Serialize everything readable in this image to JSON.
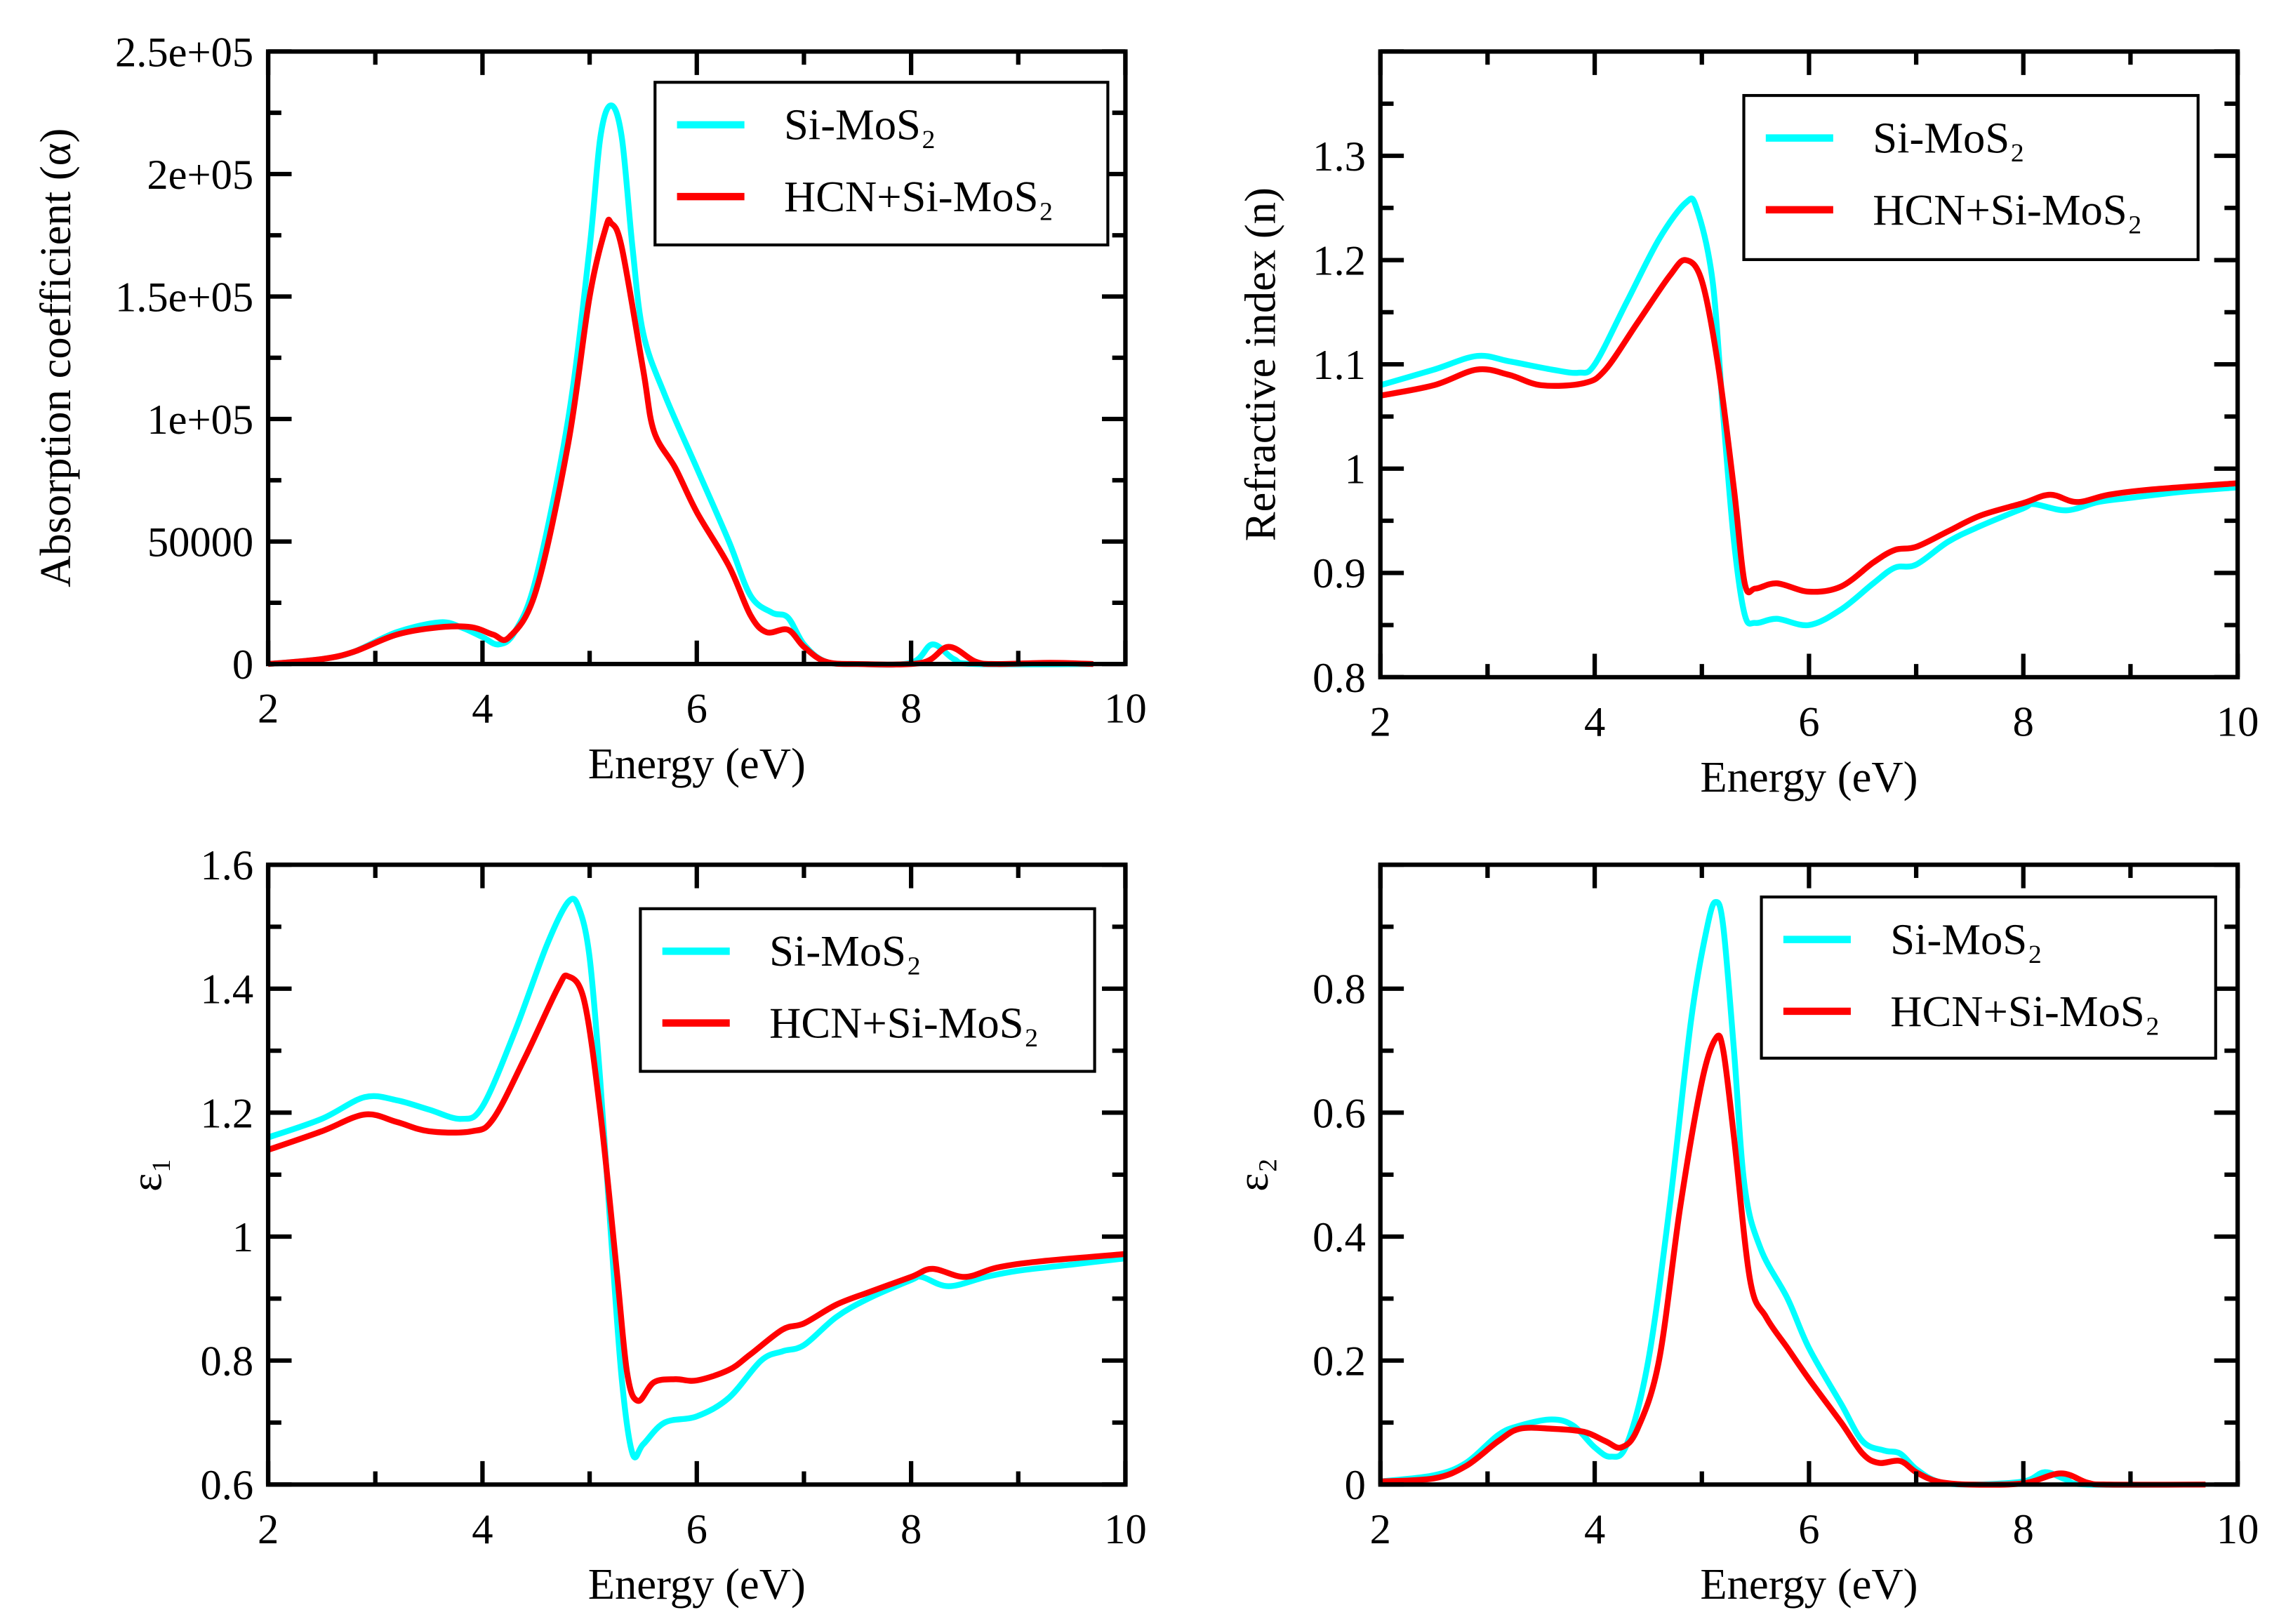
{
  "colors": {
    "series1": "#00ffff",
    "series2": "#ff0000",
    "axis": "#000000"
  },
  "chart_data": [
    {
      "type": "line",
      "xlabel": "Energy (eV)",
      "ylabel": "Absorption coefficient (α)",
      "xlim": [
        2,
        10
      ],
      "ylim": [
        0,
        250000
      ],
      "xticks": [
        2,
        4,
        6,
        8,
        10
      ],
      "xtick_labels": [
        "2",
        "4",
        "6",
        "8",
        "10"
      ],
      "yticks": [
        0,
        50000,
        100000,
        150000,
        200000,
        250000
      ],
      "ytick_labels": [
        "0",
        "50000",
        "1e+05",
        "1.5e+05",
        "2e+05",
        "2.5e+05"
      ],
      "legend": "top-right",
      "series": [
        {
          "name": "Si-MoS₂",
          "color": "#00ffff",
          "x": [
            2,
            2.5,
            2.8,
            3.2,
            3.6,
            3.8,
            4.0,
            4.15,
            4.3,
            4.5,
            4.8,
            5.0,
            5.1,
            5.2,
            5.3,
            5.4,
            5.5,
            5.7,
            6.0,
            6.3,
            6.5,
            6.7,
            6.85,
            7.0,
            7.2,
            7.5,
            8.0,
            8.2,
            8.4,
            8.6,
            9.7
          ],
          "y": [
            0,
            2000,
            5000,
            13000,
            17000,
            15000,
            11000,
            8000,
            13000,
            35000,
            100000,
            170000,
            215000,
            228000,
            215000,
            170000,
            135000,
            110000,
            80000,
            50000,
            28000,
            21000,
            19000,
            8000,
            1000,
            0,
            500,
            8000,
            2000,
            0,
            0
          ]
        },
        {
          "name": "HCN+Si-MoS₂",
          "color": "#ff0000",
          "x": [
            2,
            2.5,
            2.8,
            3.2,
            3.6,
            3.9,
            4.1,
            4.25,
            4.5,
            4.8,
            5.0,
            5.15,
            5.2,
            5.3,
            5.5,
            5.6,
            5.8,
            6.0,
            6.3,
            6.5,
            6.65,
            6.85,
            7.0,
            7.2,
            7.5,
            8.1,
            8.35,
            8.6,
            8.8,
            9.3,
            9.7
          ],
          "y": [
            0,
            2000,
            5000,
            12000,
            15000,
            15000,
            12000,
            11000,
            30000,
            90000,
            150000,
            178000,
            180000,
            170000,
            120000,
            95000,
            80000,
            62000,
            40000,
            20000,
            13000,
            14000,
            7000,
            1000,
            0,
            500,
            7000,
            1000,
            0,
            500,
            0
          ]
        }
      ]
    },
    {
      "type": "line",
      "xlabel": "Energy (eV)",
      "ylabel": "Refractive index (n)",
      "xlim": [
        2,
        10
      ],
      "ylim": [
        0.8,
        1.4
      ],
      "xticks": [
        2,
        4,
        6,
        8,
        10
      ],
      "xtick_labels": [
        "2",
        "4",
        "6",
        "8",
        "10"
      ],
      "yticks": [
        0.8,
        0.9,
        1.0,
        1.1,
        1.2,
        1.3
      ],
      "ytick_labels": [
        "0.8",
        "0.9",
        "1",
        "1.1",
        "1.2",
        "1.3"
      ],
      "legend": "top-right",
      "series": [
        {
          "name": "Si-MoS₂",
          "color": "#00ffff",
          "x": [
            2,
            2.5,
            2.9,
            3.2,
            3.6,
            3.85,
            4.0,
            4.3,
            4.6,
            4.85,
            4.95,
            5.1,
            5.2,
            5.3,
            5.4,
            5.5,
            5.7,
            6.0,
            6.3,
            6.6,
            6.8,
            7.0,
            7.3,
            7.6,
            8.0,
            8.1,
            8.4,
            8.7,
            9.0,
            9.5,
            10
          ],
          "y": [
            1.08,
            1.095,
            1.108,
            1.103,
            1.095,
            1.092,
            1.1,
            1.16,
            1.22,
            1.255,
            1.25,
            1.18,
            1.05,
            0.93,
            0.86,
            0.852,
            0.856,
            0.85,
            0.865,
            0.89,
            0.905,
            0.908,
            0.93,
            0.945,
            0.962,
            0.966,
            0.96,
            0.968,
            0.972,
            0.978,
            0.982
          ]
        },
        {
          "name": "HCN+Si-MoS₂",
          "color": "#ff0000",
          "x": [
            2,
            2.5,
            2.9,
            3.2,
            3.5,
            3.9,
            4.1,
            4.4,
            4.7,
            4.85,
            5.0,
            5.15,
            5.3,
            5.4,
            5.5,
            5.7,
            6.0,
            6.3,
            6.6,
            6.8,
            7.0,
            7.3,
            7.6,
            8.0,
            8.25,
            8.5,
            8.8,
            9.2,
            10
          ],
          "y": [
            1.07,
            1.08,
            1.095,
            1.09,
            1.08,
            1.082,
            1.095,
            1.14,
            1.185,
            1.2,
            1.18,
            1.1,
            0.98,
            0.89,
            0.885,
            0.89,
            0.882,
            0.887,
            0.91,
            0.922,
            0.925,
            0.94,
            0.955,
            0.967,
            0.975,
            0.968,
            0.975,
            0.98,
            0.986
          ]
        }
      ]
    },
    {
      "type": "line",
      "xlabel": "Energy (eV)",
      "ylabel": "ε₁",
      "xlim": [
        2,
        10
      ],
      "ylim": [
        0.6,
        1.6
      ],
      "xticks": [
        2,
        4,
        6,
        8,
        10
      ],
      "xtick_labels": [
        "2",
        "4",
        "6",
        "8",
        "10"
      ],
      "yticks": [
        0.6,
        0.8,
        1.0,
        1.2,
        1.4,
        1.6
      ],
      "ytick_labels": [
        "0.6",
        "0.8",
        "1",
        "1.2",
        "1.4",
        "1.6"
      ],
      "legend": "top-right",
      "series": [
        {
          "name": "Si-MoS₂",
          "color": "#00ffff",
          "x": [
            2,
            2.5,
            2.9,
            3.2,
            3.5,
            3.8,
            4.0,
            4.3,
            4.6,
            4.8,
            4.9,
            5.0,
            5.1,
            5.2,
            5.3,
            5.4,
            5.5,
            5.7,
            6.0,
            6.3,
            6.6,
            6.8,
            7.0,
            7.3,
            7.6,
            8.0,
            8.1,
            8.35,
            8.7,
            9.0,
            9.5,
            10
          ],
          "y": [
            1.16,
            1.19,
            1.225,
            1.22,
            1.205,
            1.19,
            1.21,
            1.33,
            1.47,
            1.54,
            1.53,
            1.45,
            1.25,
            1.0,
            0.77,
            0.65,
            0.665,
            0.7,
            0.71,
            0.74,
            0.8,
            0.815,
            0.825,
            0.87,
            0.9,
            0.93,
            0.935,
            0.92,
            0.935,
            0.945,
            0.955,
            0.965
          ]
        },
        {
          "name": "HCN+Si-MoS₂",
          "color": "#ff0000",
          "x": [
            2,
            2.5,
            2.9,
            3.2,
            3.5,
            3.9,
            4.1,
            4.4,
            4.7,
            4.8,
            4.95,
            5.1,
            5.25,
            5.35,
            5.45,
            5.6,
            5.8,
            6.0,
            6.3,
            6.5,
            6.8,
            7.0,
            7.3,
            7.6,
            8.0,
            8.2,
            8.5,
            8.8,
            9.2,
            10
          ],
          "y": [
            1.14,
            1.17,
            1.197,
            1.185,
            1.17,
            1.17,
            1.19,
            1.29,
            1.4,
            1.42,
            1.38,
            1.2,
            0.95,
            0.78,
            0.735,
            0.765,
            0.77,
            0.768,
            0.785,
            0.81,
            0.85,
            0.86,
            0.89,
            0.91,
            0.935,
            0.948,
            0.935,
            0.95,
            0.96,
            0.972
          ]
        }
      ]
    },
    {
      "type": "line",
      "xlabel": "Energy (eV)",
      "ylabel": "ε₂",
      "xlim": [
        2,
        10
      ],
      "ylim": [
        0,
        1.0
      ],
      "xticks": [
        2,
        4,
        6,
        8,
        10
      ],
      "xtick_labels": [
        "2",
        "4",
        "6",
        "8",
        "10"
      ],
      "yticks": [
        0,
        0.2,
        0.4,
        0.6,
        0.8
      ],
      "ytick_labels": [
        "0",
        "0.2",
        "0.4",
        "0.6",
        "0.8"
      ],
      "legend": "top-right",
      "series": [
        {
          "name": "Si-MoS₂",
          "color": "#00ffff",
          "x": [
            2,
            2.5,
            2.8,
            3.1,
            3.3,
            3.6,
            3.8,
            4.0,
            4.15,
            4.3,
            4.5,
            4.7,
            4.9,
            5.05,
            5.13,
            5.2,
            5.3,
            5.4,
            5.55,
            5.8,
            6.0,
            6.3,
            6.5,
            6.7,
            6.85,
            7.0,
            7.2,
            7.5,
            8.0,
            8.2,
            8.4,
            8.6,
            9.7
          ],
          "y": [
            0.005,
            0.015,
            0.035,
            0.08,
            0.095,
            0.105,
            0.095,
            0.06,
            0.045,
            0.065,
            0.2,
            0.45,
            0.75,
            0.9,
            0.94,
            0.9,
            0.7,
            0.48,
            0.38,
            0.3,
            0.22,
            0.13,
            0.07,
            0.055,
            0.05,
            0.025,
            0.005,
            0,
            0.005,
            0.02,
            0.008,
            0,
            0
          ]
        },
        {
          "name": "HCN+Si-MoS₂",
          "color": "#ff0000",
          "x": [
            2,
            2.5,
            2.8,
            3.1,
            3.3,
            3.6,
            3.9,
            4.1,
            4.25,
            4.4,
            4.6,
            4.8,
            5.0,
            5.13,
            5.2,
            5.3,
            5.45,
            5.6,
            5.8,
            6.0,
            6.3,
            6.5,
            6.65,
            6.85,
            7.0,
            7.2,
            7.5,
            8.0,
            8.35,
            8.6,
            8.8,
            9.7
          ],
          "y": [
            0.005,
            0.01,
            0.03,
            0.07,
            0.09,
            0.09,
            0.085,
            0.07,
            0.06,
            0.09,
            0.2,
            0.45,
            0.65,
            0.72,
            0.7,
            0.56,
            0.33,
            0.27,
            0.22,
            0.17,
            0.1,
            0.05,
            0.035,
            0.038,
            0.02,
            0.005,
            0,
            0.002,
            0.018,
            0.003,
            0,
            0
          ]
        }
      ]
    }
  ]
}
